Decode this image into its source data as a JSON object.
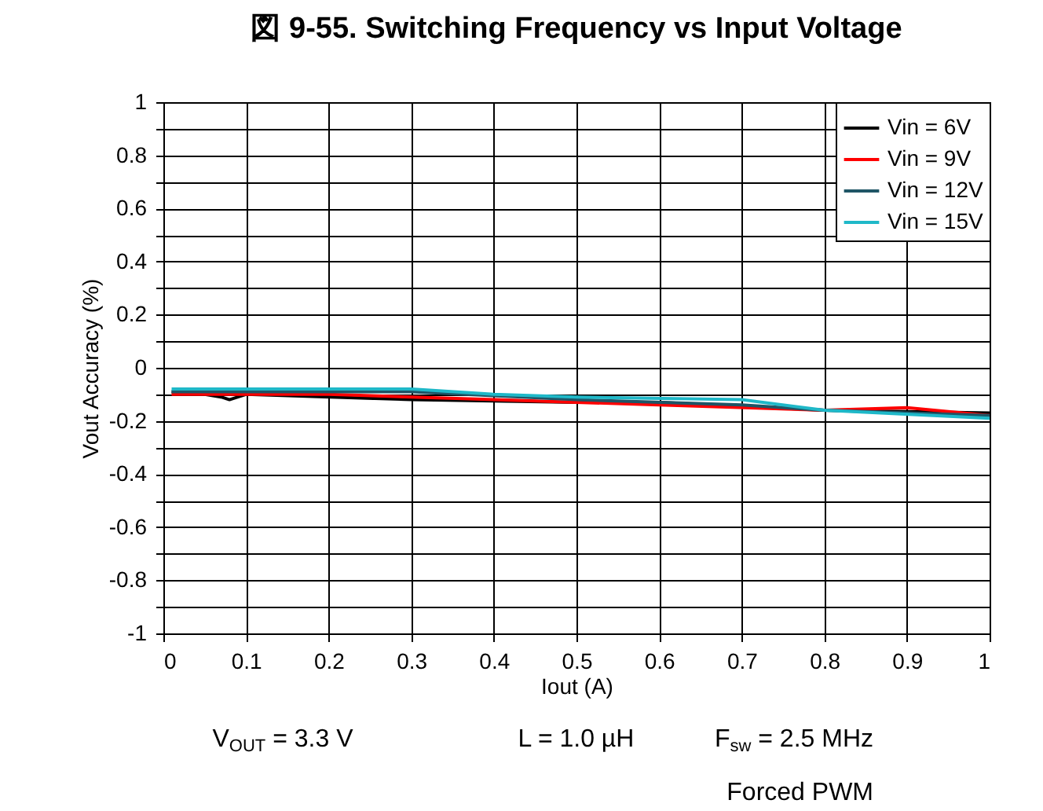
{
  "chart_data": {
    "type": "line",
    "title": "図 9-55. Switching Frequency vs Input Voltage",
    "xlabel": "Iout (A)",
    "ylabel": "Vout Accuracy (%)",
    "xlim": [
      0,
      1
    ],
    "xticks": [
      0,
      0.1,
      0.2,
      0.3,
      0.4,
      0.5,
      0.6,
      0.7,
      0.8,
      0.9,
      1
    ],
    "ylim": [
      -1,
      1
    ],
    "yticks": [
      -1,
      {
        "value": -0.9,
        "label": null
      },
      -0.8,
      {
        "value": -0.7,
        "label": null
      },
      -0.6,
      {
        "value": -0.5,
        "label": null
      },
      -0.4,
      {
        "value": -0.3,
        "label": null
      },
      -0.2,
      {
        "value": -0.1,
        "label": null
      },
      0,
      {
        "value": 0.1,
        "label": null
      },
      0.2,
      {
        "value": 0.3,
        "label": null
      },
      0.4,
      {
        "value": 0.5,
        "label": null
      },
      0.6,
      {
        "value": 0.7,
        "label": null
      },
      0.8,
      {
        "value": 0.9,
        "label": null
      },
      1
    ],
    "grid": true,
    "legend": "top right",
    "line_style": "solid",
    "marker": "none",
    "series": [
      {
        "name": "Vin = 6V",
        "color": "#000000",
        "x": [
          0.01,
          0.05,
          0.07,
          0.08,
          0.1,
          0.3,
          0.5,
          0.6,
          0.8,
          1.0
        ],
        "values": [
          -0.09,
          -0.1,
          -0.11,
          -0.12,
          -0.1,
          -0.12,
          -0.13,
          -0.13,
          -0.16,
          -0.17
        ]
      },
      {
        "name": "Vin = 9V",
        "color": "#ff0000",
        "x": [
          0.01,
          0.2,
          0.4,
          0.6,
          0.8,
          0.9,
          1.0
        ],
        "values": [
          -0.1,
          -0.1,
          -0.12,
          -0.14,
          -0.16,
          -0.15,
          -0.18
        ]
      },
      {
        "name": "Vin = 12V",
        "color": "#1f5566",
        "x": [
          0.01,
          0.1,
          0.3,
          0.5,
          0.7,
          0.8,
          1.0
        ],
        "values": [
          -0.09,
          -0.09,
          -0.09,
          -0.12,
          -0.14,
          -0.16,
          -0.18
        ]
      },
      {
        "name": "Vin = 15V",
        "color": "#1fb8c8",
        "x": [
          0.01,
          0.05,
          0.3,
          0.4,
          0.5,
          0.7,
          0.8,
          1.0
        ],
        "values": [
          -0.08,
          -0.08,
          -0.08,
          -0.1,
          -0.11,
          -0.12,
          -0.16,
          -0.19
        ]
      }
    ],
    "annotations": [
      "V$_{OUT}$ = 3.3 V",
      "L = 1.0 µH",
      "F$_{sw}$ = 2.5 MHz",
      "Forced PWM"
    ]
  }
}
